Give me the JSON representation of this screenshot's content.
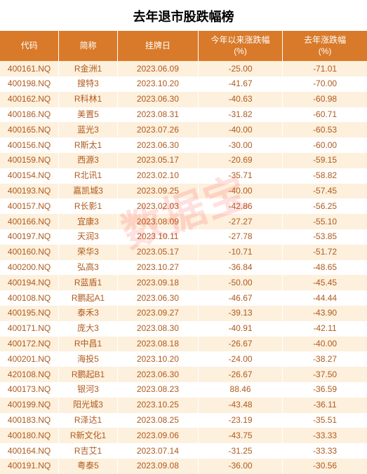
{
  "title": "去年退市股跌幅榜",
  "watermark": "数据宝",
  "header_bg": "#d87a2a",
  "row_colors": {
    "even": "#fdf0dd",
    "odd": "#ffffff"
  },
  "text_color": "#b05a1c",
  "columns": [
    {
      "key": "code",
      "label": "代码"
    },
    {
      "key": "name",
      "label": "简称"
    },
    {
      "key": "date",
      "label": "挂牌日"
    },
    {
      "key": "ytd",
      "label": "今年以来涨跌幅\n(%)"
    },
    {
      "key": "last",
      "label": "去年涨跌幅\n(%)"
    }
  ],
  "rows": [
    {
      "code": "400161.NQ",
      "name": "R金洲1",
      "date": "2023.06.09",
      "ytd": "-25.00",
      "last": "-71.01"
    },
    {
      "code": "400198.NQ",
      "name": "搜特3",
      "date": "2023.10.20",
      "ytd": "-41.67",
      "last": "-70.00"
    },
    {
      "code": "400162.NQ",
      "name": "R科林1",
      "date": "2023.06.30",
      "ytd": "-40.63",
      "last": "-60.98"
    },
    {
      "code": "400186.NQ",
      "name": "美置5",
      "date": "2023.08.31",
      "ytd": "-31.82",
      "last": "-60.71"
    },
    {
      "code": "400165.NQ",
      "name": "蓝光3",
      "date": "2023.07.26",
      "ytd": "-40.00",
      "last": "-60.53"
    },
    {
      "code": "400156.NQ",
      "name": "R斯太1",
      "date": "2023.06.30",
      "ytd": "-30.00",
      "last": "-60.00"
    },
    {
      "code": "400159.NQ",
      "name": "西源3",
      "date": "2023.05.17",
      "ytd": "-20.69",
      "last": "-59.15"
    },
    {
      "code": "400154.NQ",
      "name": "R北讯1",
      "date": "2023.02.10",
      "ytd": "-35.71",
      "last": "-58.82"
    },
    {
      "code": "400193.NQ",
      "name": "嘉凯城3",
      "date": "2023.09.25",
      "ytd": "-40.00",
      "last": "-57.45"
    },
    {
      "code": "400157.NQ",
      "name": "R长影1",
      "date": "2023.02.03",
      "ytd": "-42.86",
      "last": "-56.25"
    },
    {
      "code": "400166.NQ",
      "name": "宜康3",
      "date": "2023.08.09",
      "ytd": "-27.27",
      "last": "-55.10"
    },
    {
      "code": "400197.NQ",
      "name": "天润3",
      "date": "2023.10.11",
      "ytd": "-27.78",
      "last": "-53.85"
    },
    {
      "code": "400160.NQ",
      "name": "荣华3",
      "date": "2023.05.17",
      "ytd": "-10.71",
      "last": "-51.72"
    },
    {
      "code": "400200.NQ",
      "name": "弘高3",
      "date": "2023.10.27",
      "ytd": "-36.84",
      "last": "-48.65"
    },
    {
      "code": "400194.NQ",
      "name": "R蓝盾1",
      "date": "2023.09.18",
      "ytd": "-50.00",
      "last": "-45.45"
    },
    {
      "code": "400108.NQ",
      "name": "R鹏起A1",
      "date": "2023.06.30",
      "ytd": "-46.67",
      "last": "-44.44"
    },
    {
      "code": "400195.NQ",
      "name": "泰禾3",
      "date": "2023.09.27",
      "ytd": "-39.13",
      "last": "-43.90"
    },
    {
      "code": "400171.NQ",
      "name": "庞大3",
      "date": "2023.08.30",
      "ytd": "-40.91",
      "last": "-42.11"
    },
    {
      "code": "400172.NQ",
      "name": "R中昌1",
      "date": "2023.08.18",
      "ytd": "-26.67",
      "last": "-40.00"
    },
    {
      "code": "400201.NQ",
      "name": "海投5",
      "date": "2023.10.20",
      "ytd": "-24.00",
      "last": "-38.27"
    },
    {
      "code": "420108.NQ",
      "name": "R鹏起B1",
      "date": "2023.06.30",
      "ytd": "-26.67",
      "last": "-37.50"
    },
    {
      "code": "400173.NQ",
      "name": "银河3",
      "date": "2023.08.23",
      "ytd": "88.46",
      "last": "-36.59"
    },
    {
      "code": "400199.NQ",
      "name": "阳光城3",
      "date": "2023.10.25",
      "ytd": "-43.48",
      "last": "-36.11"
    },
    {
      "code": "400183.NQ",
      "name": "R泽达1",
      "date": "2023.08.25",
      "ytd": "-23.19",
      "last": "-35.51"
    },
    {
      "code": "400180.NQ",
      "name": "R新文化1",
      "date": "2023.09.06",
      "ytd": "-43.75",
      "last": "-33.33"
    },
    {
      "code": "400164.NQ",
      "name": "R吉艾1",
      "date": "2023.07.14",
      "ytd": "-31.25",
      "last": "-33.33"
    },
    {
      "code": "400191.NQ",
      "name": "粤泰5",
      "date": "2023.09.08",
      "ytd": "-36.00",
      "last": "-30.56"
    }
  ]
}
